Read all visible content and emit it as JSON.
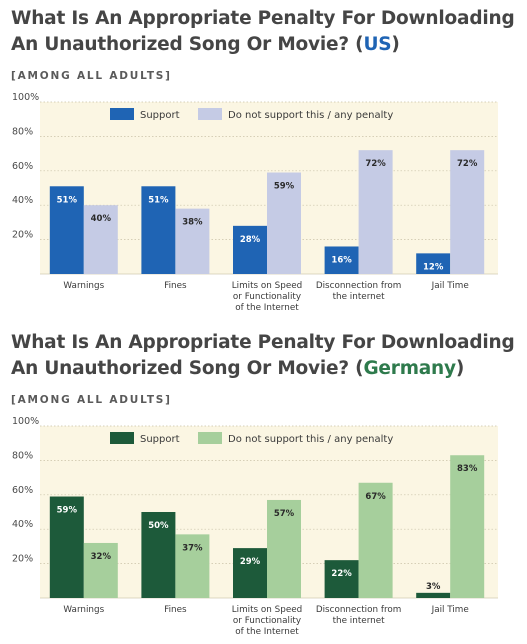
{
  "chart_data": [
    {
      "type": "bar",
      "title_main": "What Is An Appropriate Penalty For Downloading An Unauthorized Song Or Movie? (",
      "title_country": "US",
      "title_close": ")",
      "subtitle": "[AMONG ALL ADULTS]",
      "categories": [
        [
          "Warnings"
        ],
        [
          "Fines"
        ],
        [
          "Limits on Speed",
          "or Functionality",
          "of the Internet"
        ],
        [
          "Disconnection from",
          "the internet"
        ],
        [
          "Jail Time"
        ]
      ],
      "series": [
        {
          "name": "Support",
          "values": [
            51,
            51,
            28,
            16,
            12
          ],
          "color": "#1f64b4"
        },
        {
          "name": "Do not support this / any penalty",
          "values": [
            40,
            38,
            59,
            72,
            72
          ],
          "color": "#c5cbe5"
        }
      ],
      "ylim": [
        0,
        100
      ],
      "yticks": [
        "20%",
        "40%",
        "60%",
        "80%",
        "100%"
      ],
      "value_suffix": "%",
      "accent": "#1f64b4",
      "legend_position": "top"
    },
    {
      "type": "bar",
      "title_main": "What Is An Appropriate Penalty For Downloading An Unauthorized Song Or Movie? (",
      "title_country": "Germany",
      "title_close": ")",
      "subtitle": "[AMONG ALL ADULTS]",
      "categories": [
        [
          "Warnings"
        ],
        [
          "Fines"
        ],
        [
          "Limits on Speed",
          "or Functionality",
          "of the Internet"
        ],
        [
          "Disconnection from",
          "the internet"
        ],
        [
          "Jail Time"
        ]
      ],
      "series": [
        {
          "name": "Support",
          "values": [
            59,
            50,
            29,
            22,
            3
          ],
          "color": "#1d5a3a"
        },
        {
          "name": "Do not support this / any penalty",
          "values": [
            32,
            37,
            57,
            67,
            83
          ],
          "color": "#a6cf9c"
        }
      ],
      "ylim": [
        0,
        100
      ],
      "yticks": [
        "20%",
        "40%",
        "60%",
        "80%",
        "100%"
      ],
      "value_suffix": "%",
      "accent": "#2e7a4c",
      "legend_position": "top"
    }
  ]
}
